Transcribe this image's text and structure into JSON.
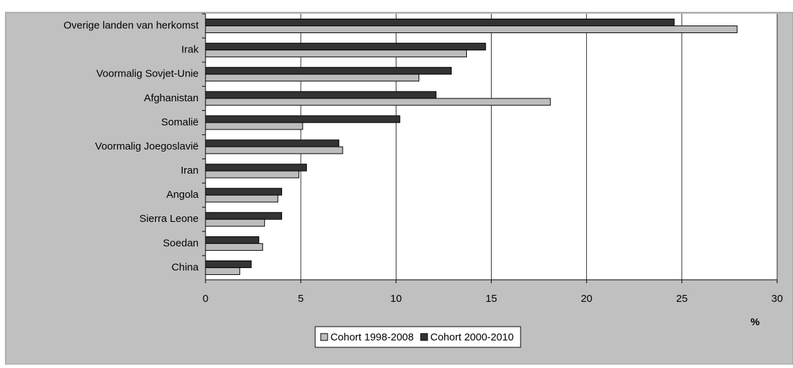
{
  "chart_data": {
    "type": "hbar",
    "categories": [
      "Overige landen van herkomst",
      "Irak",
      "Voormalig Sovjet-Unie",
      "Afghanistan",
      "Somalië",
      "Voormalig Joegoslavië",
      "Iran",
      "Angola",
      "Sierra Leone",
      "Soedan",
      "China"
    ],
    "series": [
      {
        "name": "Cohort 1998-2008",
        "color": "#bdbdbd",
        "values": [
          27.9,
          13.7,
          11.2,
          18.1,
          5.1,
          7.2,
          4.9,
          3.8,
          3.1,
          3.0,
          1.8
        ]
      },
      {
        "name": "Cohort 2000-2010",
        "color": "#333333",
        "values": [
          24.6,
          14.7,
          12.9,
          12.1,
          10.2,
          7.0,
          5.3,
          4.0,
          4.0,
          2.8,
          2.4
        ]
      }
    ],
    "x_label": "%",
    "xlim": [
      0,
      30
    ],
    "xticks": [
      0,
      5,
      10,
      15,
      20,
      25,
      30
    ],
    "grid": true
  }
}
